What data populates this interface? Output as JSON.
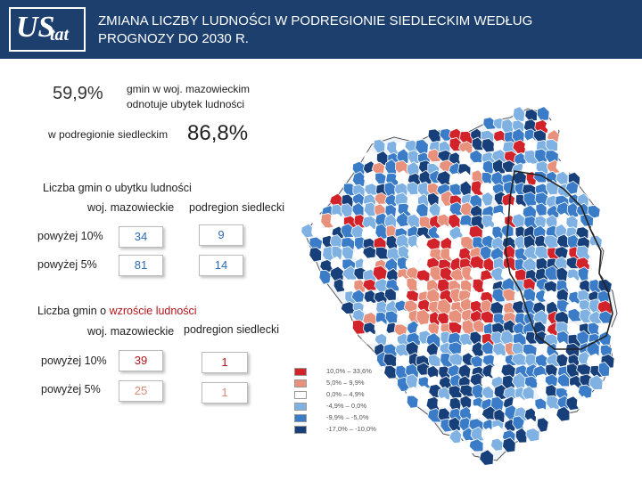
{
  "header": {
    "logo_text_main": "US",
    "logo_text_sub": "tat",
    "title": "ZMIANA LICZBY LUDNOŚCI W PODREGIONIE SIEDLECKIM WEDŁUG PROGNOZY DO 2030 R."
  },
  "stats": {
    "pct_mazowieckie": "59,9%",
    "desc_mazowieckie_line1": "gmin w woj. mazowieckim",
    "desc_mazowieckie_line2": "odnotuje ubytek ludności",
    "desc_siedlecki": "w podregionie siedleckim",
    "pct_siedlecki": "86,8%"
  },
  "decline": {
    "title": "Liczba gmin o ubytku ludności",
    "col1": "woj. mazowieckie",
    "col2": "podregion siedlecki",
    "rows": [
      {
        "label": "powyżej 10%",
        "mazowieckie": "34",
        "siedlecki": "9"
      },
      {
        "label": "powyżej 5%",
        "mazowieckie": "81",
        "siedlecki": "14"
      }
    ]
  },
  "growth": {
    "title_prefix": "Liczba gmin o ",
    "title_highlight": "wzroście ludności",
    "col1": "woj. mazowieckie",
    "col2": "podregion siedlecki",
    "rows": [
      {
        "label": "powyżej 10%",
        "mazowieckie": "39",
        "siedlecki": "1"
      },
      {
        "label": "powyżej 5%",
        "mazowieckie": "25",
        "siedlecki": "1"
      }
    ]
  },
  "legend": [
    {
      "label": "10,0% – 33,6%",
      "color": "#d2232a"
    },
    {
      "label": "5,0% – 9,9%",
      "color": "#e8917c"
    },
    {
      "label": "0,0% – 4,9%",
      "color": "#ffffff"
    },
    {
      "label": "-4,9% – 0,0%",
      "color": "#7fb2e3"
    },
    {
      "label": "-9,9% – -5,0%",
      "color": "#3a7cc7"
    },
    {
      "label": "-17,0% – -10,0%",
      "color": "#173f7a"
    }
  ],
  "map_colors": {
    "dark_red": "#d2232a",
    "salmon": "#e8917c",
    "white": "#ffffff",
    "light_blue": "#7fb2e3",
    "blue": "#3a7cc7",
    "navy": "#173f7a"
  }
}
